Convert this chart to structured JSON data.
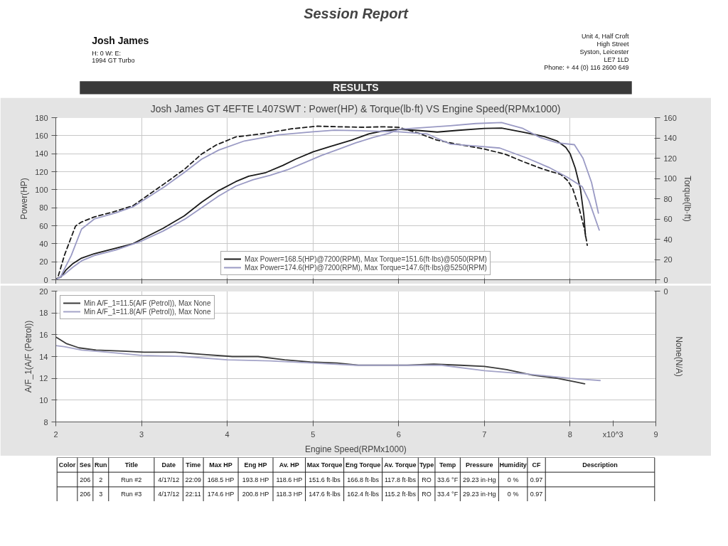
{
  "chart_data": [
    {
      "type": "other",
      "title": "Session Report",
      "annotations": [
        "Josh James",
        "H: 0 W: E:",
        "1994 GT Turbo",
        "Unit 4, Half Croft",
        "High Street",
        "Syston, Leicester",
        "LE7 1LD",
        "Phone: + 44 (0) 116 2600 649",
        "RESULTS"
      ]
    },
    {
      "type": "line",
      "title": "Josh James GT 4EFTE L407SWT : Power(HP) & Torque(lb·ft) VS Engine Speed(RPMx1000)",
      "ylabel": "Power(HP)",
      "y2label": "Torque(lb·ft)",
      "xlim": [
        2,
        9
      ],
      "xticks": [
        2,
        3,
        4,
        5,
        6,
        7,
        8,
        9
      ],
      "ylim": [
        0,
        180
      ],
      "yticks": [
        0,
        20,
        40,
        60,
        80,
        100,
        120,
        140,
        160,
        180
      ],
      "y2lim": [
        0,
        160
      ],
      "y2ticks": [
        0,
        20,
        40,
        60,
        80,
        100,
        120,
        140,
        160
      ],
      "tick_labels": "y",
      "grid": true,
      "legend": "bottom",
      "series": [
        {
          "name": "Max Power=168.5(HP)@7200(RPM), Max Torque=151.6(ft·lbs)@5050(RPM)",
          "color": "#1a1a1a",
          "line_style": "solid",
          "x": [
            2.0,
            2.06,
            2.12,
            2.2,
            2.3,
            2.45,
            2.7,
            2.9,
            3.0,
            3.25,
            3.5,
            3.7,
            3.9,
            4.1,
            4.25,
            4.45,
            4.65,
            4.8,
            5.0,
            5.2,
            5.45,
            5.65,
            5.8,
            6.0,
            6.2,
            6.45,
            6.7,
            7.0,
            7.2,
            7.45,
            7.7,
            7.85,
            7.95,
            8.0,
            8.06,
            8.12,
            8.16,
            8.18
          ],
          "values": [
            1,
            3,
            11,
            18,
            24,
            29,
            35,
            40,
            45,
            57,
            71,
            86,
            99,
            109,
            115,
            119,
            127,
            134,
            142,
            148,
            155,
            162,
            165,
            167,
            166,
            164,
            166,
            168,
            168.5,
            164,
            159,
            154,
            147,
            140,
            124,
            101,
            72,
            48
          ]
        },
        {
          "color": "#1a1a1a",
          "line_style": "dashed",
          "axis": "y2",
          "x": [
            2.03,
            2.1,
            2.18,
            2.23,
            2.3,
            2.45,
            2.67,
            2.9,
            3.05,
            3.27,
            3.5,
            3.7,
            3.87,
            4.1,
            4.4,
            4.75,
            5.05,
            5.3,
            5.6,
            5.8,
            6.0,
            6.22,
            6.44,
            6.67,
            7.0,
            7.24,
            7.47,
            7.69,
            7.89,
            7.97,
            8.03,
            8.11,
            8.17,
            8.2
          ],
          "values": [
            4,
            24,
            42,
            53,
            57,
            62,
            67,
            73,
            82,
            95,
            109,
            124,
            133,
            141,
            144,
            149,
            151.6,
            151,
            150.5,
            151,
            150.5,
            145,
            138,
            134,
            129,
            124,
            116,
            109,
            104,
            98,
            90,
            69,
            49,
            34
          ]
        },
        {
          "name": "Max Power=174.6(HP)@7200(RPM), Max Torque=147.6(ft·lbs)@5250(RPM)",
          "color": "#9a9ac4",
          "line_style": "solid",
          "x": [
            2.0,
            2.1,
            2.2,
            2.3,
            2.45,
            2.7,
            3.0,
            3.25,
            3.5,
            3.7,
            3.9,
            4.1,
            4.3,
            4.5,
            4.7,
            4.9,
            5.1,
            5.3,
            5.5,
            5.7,
            5.9,
            6.0,
            6.3,
            6.6,
            6.9,
            7.2,
            7.45,
            7.65,
            7.85,
            8.05,
            8.15,
            8.25,
            8.33
          ],
          "values": [
            0,
            6,
            14,
            21,
            27,
            33,
            43,
            54,
            67,
            80,
            93,
            104,
            111,
            116,
            122,
            130,
            138,
            145,
            152,
            158,
            163,
            167,
            169,
            171,
            173.5,
            174.6,
            168,
            158,
            152,
            150,
            135,
            108,
            74
          ]
        },
        {
          "color": "#9a9ac4",
          "line_style": "solid",
          "axis": "y2",
          "x": [
            2.05,
            2.18,
            2.3,
            2.45,
            2.7,
            2.9,
            3.05,
            3.27,
            3.5,
            3.7,
            3.9,
            4.2,
            4.6,
            5.0,
            5.25,
            5.6,
            6.0,
            6.33,
            6.6,
            6.9,
            7.18,
            7.5,
            7.75,
            7.97,
            8.14,
            8.22,
            8.34
          ],
          "values": [
            2,
            24,
            50,
            60,
            66,
            72,
            80,
            92,
            106,
            119,
            128,
            137,
            143,
            146,
            147.6,
            147,
            146,
            144,
            134,
            132,
            130,
            120,
            111,
            101,
            92,
            78,
            49
          ]
        }
      ]
    },
    {
      "type": "line",
      "xlabel": "Engine Speed(RPMx1000)",
      "ylabel": "A/F_1(A/F (Petrol))",
      "y2label": "None(N/A)",
      "xlim": [
        2,
        9
      ],
      "xticks": [
        2,
        3,
        4,
        5,
        6,
        7,
        8,
        9
      ],
      "ylim": [
        8,
        20
      ],
      "yticks": [
        8,
        10,
        12,
        14,
        16,
        18,
        20
      ],
      "grid": true,
      "legend": "top left",
      "annotations": [
        "0",
        "x10^3"
      ],
      "series": [
        {
          "name": "Min A/F_1=11.5(A/F (Petrol)), Max None",
          "color": "#3a3a3a",
          "x": [
            2.0,
            2.12,
            2.27,
            2.47,
            2.78,
            3.03,
            3.39,
            3.7,
            4.06,
            4.36,
            4.67,
            4.97,
            5.28,
            5.53,
            5.79,
            6.1,
            6.41,
            6.72,
            7.0,
            7.26,
            7.56,
            7.85,
            8.05,
            8.17
          ],
          "values": [
            15.8,
            15.2,
            14.8,
            14.6,
            14.5,
            14.4,
            14.4,
            14.2,
            14.0,
            14.0,
            13.7,
            13.5,
            13.4,
            13.2,
            13.2,
            13.2,
            13.3,
            13.2,
            13.1,
            12.8,
            12.3,
            12.0,
            11.7,
            11.5
          ]
        },
        {
          "name": "Min A/F_1=11.8(A/F (Petrol)), Max None",
          "color": "#a4a4c8",
          "x": [
            2.0,
            2.1,
            2.3,
            2.6,
            3.0,
            3.5,
            4.0,
            4.5,
            5.0,
            5.5,
            6.0,
            6.5,
            7.0,
            7.5,
            8.0,
            8.35
          ],
          "values": [
            15.0,
            14.9,
            14.6,
            14.4,
            14.1,
            14.0,
            13.7,
            13.6,
            13.4,
            13.2,
            13.2,
            13.2,
            12.7,
            12.4,
            12.0,
            11.8
          ]
        }
      ]
    },
    {
      "type": "other",
      "categories": [
        "Color",
        "Ses",
        "Run",
        "Title",
        "Date",
        "Time",
        "Max HP",
        "Eng HP",
        "Av. HP",
        "Max Torque",
        "Eng Torque",
        "Av. Torque",
        "Type",
        "Temp",
        "Pressure",
        "Humidity",
        "CF",
        "Description"
      ],
      "cell_labels": [
        [
          null,
          "206",
          "2",
          "Run #2",
          "4/17/12",
          "22:09",
          "168.5 HP",
          "193.8 HP",
          "118.6 HP",
          "151.6 ft·lbs",
          "166.8 ft·lbs",
          "117.8 ft·lbs",
          "RO",
          "33.6 °F",
          "29.23 in·Hg",
          "0 %",
          "0.97",
          null
        ],
        [
          null,
          "206",
          "3",
          "Run #3",
          "4/17/12",
          "22:11",
          "174.6 HP",
          "200.8 HP",
          "118.3 HP",
          "147.6 ft·lbs",
          "162.4 ft·lbs",
          "115.2 ft·lbs",
          "RO",
          "33.4 °F",
          "29.23 in·Hg",
          "0 %",
          "0.97",
          null
        ]
      ]
    }
  ]
}
